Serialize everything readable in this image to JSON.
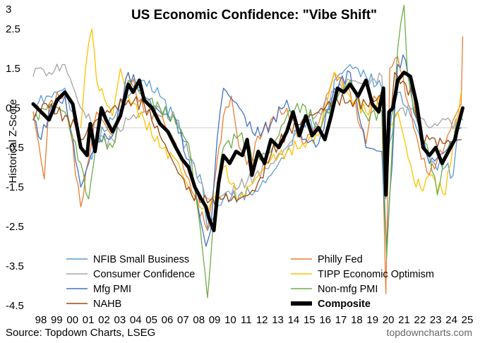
{
  "chart_data": {
    "type": "line",
    "title": "US Economic Confidence: \"Vibe Shift\"",
    "ylabel": "Historical Z-Score",
    "xlabel": "",
    "ylim": [
      -4.5,
      3
    ],
    "yticks": [
      "3",
      "2.5",
      "1.5",
      "0.5",
      "-0.5",
      "-1.5",
      "-2.5",
      "-3.5",
      "-4.5"
    ],
    "xticks": [
      "98",
      "99",
      "00",
      "01",
      "02",
      "03",
      "04",
      "05",
      "06",
      "07",
      "08",
      "09",
      "10",
      "11",
      "12",
      "13",
      "14",
      "15",
      "16",
      "17",
      "18",
      "19",
      "20",
      "21",
      "22",
      "23",
      "24",
      "25"
    ],
    "xlim": [
      1998,
      2025.3
    ],
    "zero_line": true,
    "legend": "bottom, two columns",
    "source": "Source: Topdown Charts, LSEG",
    "watermark": "topdowncharts.com",
    "series": [
      {
        "name": "NFIB Small Business",
        "color": "#5b9bd5",
        "width": 1.3,
        "x": [
          1998,
          1999,
          2000,
          2001,
          2001.7,
          2002,
          2003,
          2004,
          2005,
          2006,
          2007,
          2008,
          2008.7,
          2009,
          2009.5,
          2010,
          2011,
          2012,
          2013,
          2014,
          2015,
          2016,
          2016.9,
          2017,
          2018,
          2019,
          2020,
          2020.25,
          2020.6,
          2021,
          2022,
          2023,
          2024,
          2024.5,
          2024.9,
          2025.1
        ],
        "y": [
          0.6,
          0.8,
          1.0,
          -0.4,
          -0.8,
          -0.3,
          0.2,
          0.8,
          1.2,
          0.8,
          0.2,
          -0.8,
          -1.5,
          -2.6,
          -2.2,
          -1.8,
          -1.7,
          -1.6,
          -1.2,
          -0.6,
          0.2,
          0.0,
          0.8,
          1.2,
          1.6,
          1.3,
          1.0,
          -1.8,
          0.3,
          0.9,
          0.2,
          -0.9,
          -1.0,
          -1.2,
          0.3,
          0.2
        ]
      },
      {
        "name": "Philly Fed",
        "color": "#ed7d31",
        "width": 1.3,
        "x": [
          1998,
          1998.7,
          1999,
          2000,
          2001,
          2001.5,
          2002,
          2003,
          2004,
          2005,
          2006,
          2007,
          2008,
          2009,
          2009.4,
          2010,
          2010.5,
          2011,
          2011.8,
          2012,
          2013,
          2014,
          2015,
          2016,
          2017,
          2018,
          2019,
          2019.5,
          2020,
          2020.25,
          2020.5,
          2021,
          2022,
          2022.5,
          2023,
          2024,
          2024.5,
          2025,
          2025.1
        ],
        "y": [
          0.4,
          -1.3,
          0.6,
          0.9,
          -2.0,
          -0.8,
          0.4,
          -0.2,
          1.4,
          0.4,
          0.3,
          -0.4,
          -1.6,
          -2.6,
          -1.5,
          0.3,
          0.8,
          -0.5,
          -1.0,
          -0.4,
          0.2,
          0.5,
          -0.4,
          0.1,
          1.4,
          0.9,
          -0.4,
          0.8,
          0.4,
          -4.2,
          1.5,
          1.8,
          0.0,
          -0.8,
          -1.2,
          -0.4,
          0.2,
          0.6,
          2.3
        ]
      },
      {
        "name": "Consumer Confidence",
        "color": "#a5a5a5",
        "width": 1.3,
        "x": [
          1998,
          1998.3,
          1999,
          2000,
          2001,
          2002,
          2002.5,
          2003,
          2004,
          2005,
          2006,
          2007,
          2008,
          2009,
          2009.5,
          2010,
          2011,
          2012,
          2013,
          2014,
          2015,
          2016,
          2017,
          2018,
          2019,
          2020,
          2020.3,
          2021,
          2022,
          2023,
          2024,
          2025
        ],
        "y": [
          1.3,
          1.5,
          1.4,
          1.6,
          0.5,
          0.0,
          -0.3,
          -0.3,
          0.2,
          0.4,
          0.5,
          0.2,
          -0.9,
          -1.8,
          -1.9,
          -1.7,
          -1.5,
          -1.2,
          -0.9,
          -0.5,
          0.1,
          0.4,
          0.9,
          1.2,
          1.1,
          1.3,
          -0.6,
          0.4,
          0.5,
          0.0,
          0.2,
          0.0
        ]
      },
      {
        "name": "TIPP Economic Optimism",
        "color": "#ffc000",
        "width": 1.3,
        "x": [
          2001,
          2001.3,
          2001.7,
          2002,
          2003,
          2003.5,
          2004,
          2005,
          2006,
          2007,
          2008,
          2009,
          2010,
          2011,
          2012,
          2013,
          2014,
          2015,
          2016,
          2017,
          2017.2,
          2018,
          2019,
          2020,
          2020.3,
          2021,
          2022,
          2022.6,
          2023,
          2024,
          2025
        ],
        "y": [
          0.0,
          1.5,
          2.5,
          1.2,
          0.3,
          1.5,
          0.8,
          0.2,
          -0.5,
          -0.8,
          -1.7,
          -2.2,
          -1.0,
          -1.8,
          -1.3,
          -0.8,
          -0.6,
          -0.4,
          -0.2,
          1.4,
          1.3,
          0.8,
          0.4,
          0.7,
          -0.2,
          0.4,
          -1.3,
          -1.6,
          -1.2,
          -1.7,
          0.9
        ]
      },
      {
        "name": "Mfg PMI",
        "color": "#4472c4",
        "width": 1.3,
        "x": [
          1998,
          1998.5,
          1999,
          2000,
          2001,
          2002,
          2003,
          2004,
          2005,
          2006,
          2007,
          2008,
          2008.9,
          2009.2,
          2009.6,
          2010,
          2011,
          2012,
          2013,
          2014,
          2015,
          2016,
          2017,
          2018,
          2019,
          2020,
          2020.3,
          2021,
          2021.5,
          2022,
          2023,
          2024,
          2025
        ],
        "y": [
          0.2,
          -0.3,
          0.4,
          0.8,
          -1.5,
          -0.3,
          -0.2,
          1.4,
          0.8,
          0.4,
          0.2,
          -1.2,
          -3.0,
          -2.6,
          -0.3,
          1.0,
          0.5,
          -0.2,
          0.1,
          0.7,
          -0.3,
          -0.4,
          1.0,
          1.4,
          -0.5,
          -0.6,
          -3.1,
          1.6,
          1.7,
          0.4,
          -0.9,
          -0.6,
          0.0
        ]
      },
      {
        "name": "Non-mfg PMI",
        "color": "#70ad47",
        "width": 1.3,
        "x": [
          1998,
          1999,
          2000,
          2001,
          2001.5,
          2002,
          2003,
          2004,
          2005,
          2006,
          2007,
          2007.8,
          2008.5,
          2009,
          2009.5,
          2010,
          2011,
          2012,
          2013,
          2014,
          2015,
          2016,
          2017,
          2018,
          2019,
          2020,
          2020.3,
          2020.8,
          2021,
          2021.4,
          2021.6,
          2022,
          2023,
          2023.5,
          2024,
          2025
        ],
        "y": [
          0.2,
          0.6,
          0.4,
          -0.9,
          -1.8,
          -0.2,
          -0.5,
          1.2,
          0.8,
          0.5,
          0.1,
          -0.4,
          -2.4,
          -4.3,
          -1.8,
          -0.5,
          -0.2,
          -0.8,
          -0.6,
          0.3,
          0.6,
          0.0,
          0.7,
          1.2,
          0.3,
          0.4,
          -3.3,
          0.7,
          2.0,
          3.1,
          1.5,
          0.5,
          -0.7,
          -1.7,
          -0.8,
          0.3
        ]
      },
      {
        "name": "NAHB",
        "color": "#9e480e",
        "width": 1.3,
        "x": [
          1998,
          1998.6,
          1999,
          2000,
          2000.7,
          2001,
          2002,
          2003,
          2004,
          2005,
          2006,
          2006.5,
          2007,
          2008,
          2009,
          2010,
          2011,
          2012,
          2013,
          2014,
          2015,
          2016,
          2017,
          2018,
          2019,
          2020,
          2020.3,
          2020.8,
          2021,
          2022,
          2022.5,
          2023,
          2024,
          2025
        ],
        "y": [
          0.2,
          0.6,
          0.5,
          0.3,
          0.0,
          -0.3,
          0.2,
          0.5,
          0.7,
          0.6,
          -0.2,
          -0.6,
          -1.0,
          -1.7,
          -1.9,
          -1.8,
          -1.8,
          -1.6,
          -0.7,
          -0.1,
          0.2,
          0.4,
          0.7,
          0.7,
          0.6,
          0.8,
          -0.8,
          1.4,
          1.3,
          0.8,
          -0.4,
          -0.3,
          -0.4,
          -0.3
        ]
      },
      {
        "name": "Composite",
        "color": "#000000",
        "width": 5,
        "x": [
          1998,
          1998.5,
          1999,
          1999.5,
          2000,
          2000.5,
          2001,
          2001.4,
          2001.6,
          2001.9,
          2002.3,
          2002.6,
          2003,
          2003.5,
          2004,
          2004.3,
          2004.7,
          2005,
          2005.5,
          2006,
          2006.5,
          2007,
          2007.4,
          2007.8,
          2008.2,
          2008.6,
          2008.9,
          2009.1,
          2009.4,
          2009.7,
          2010,
          2010.4,
          2010.8,
          2011.2,
          2011.5,
          2011.8,
          2012.2,
          2012.6,
          2013,
          2013.5,
          2014,
          2014.4,
          2014.8,
          2015.2,
          2015.6,
          2016,
          2016.4,
          2016.8,
          2017.2,
          2017.6,
          2018,
          2018.5,
          2019,
          2019.4,
          2019.8,
          2020.1,
          2020.25,
          2020.45,
          2020.7,
          2021,
          2021.4,
          2021.8,
          2022.2,
          2022.6,
          2023,
          2023.4,
          2023.8,
          2024.2,
          2024.6,
          2024.9,
          2025.1
        ],
        "y": [
          0.6,
          0.4,
          0.2,
          0.7,
          0.9,
          0.6,
          -0.5,
          -0.7,
          0.1,
          -0.6,
          0.5,
          0.2,
          -0.1,
          0.3,
          1.1,
          0.9,
          1.2,
          0.7,
          0.5,
          0.1,
          -0.1,
          -0.5,
          -0.8,
          -1.0,
          -1.5,
          -1.8,
          -2.0,
          -2.3,
          -2.6,
          -1.4,
          -0.7,
          -0.9,
          -0.6,
          -0.7,
          -0.3,
          -1.2,
          -0.6,
          -0.9,
          -0.3,
          -0.5,
          -0.1,
          0.4,
          -0.2,
          0.3,
          -0.2,
          0.0,
          -0.3,
          0.3,
          1.0,
          0.9,
          1.1,
          0.8,
          1.2,
          0.6,
          0.4,
          1.0,
          -1.7,
          0.4,
          0.5,
          1.2,
          1.4,
          1.3,
          0.6,
          -0.5,
          -0.7,
          -0.5,
          -0.9,
          -0.6,
          -0.3,
          0.2,
          0.5
        ]
      }
    ]
  }
}
